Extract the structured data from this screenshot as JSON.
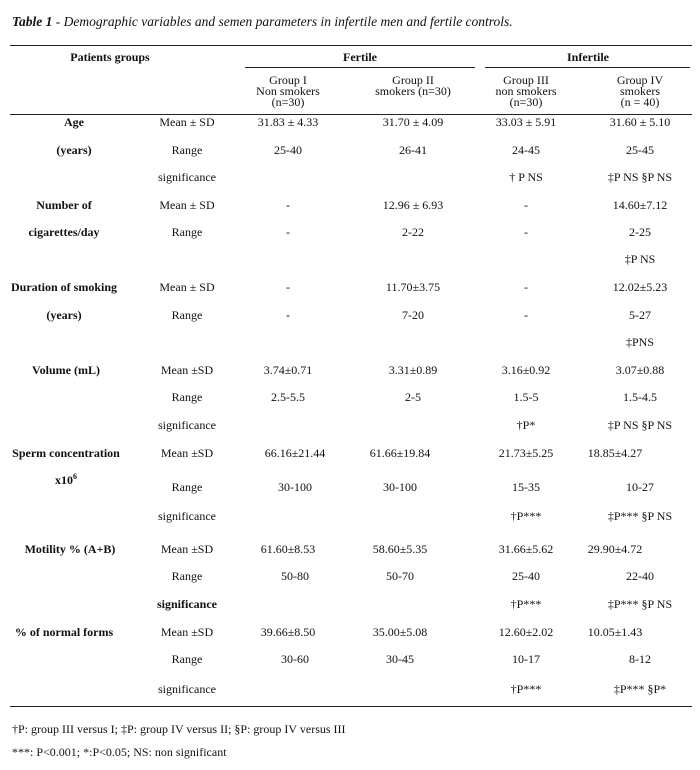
{
  "caption": {
    "label": "Table 1",
    "text": " - Demographic variables and semen parameters in infertile men and fertile controls."
  },
  "header": {
    "patients_groups": "Patients groups",
    "fertile": "Fertile",
    "infertile": "Infertile",
    "group1": [
      "Group I",
      "Non smokers",
      "(n=30)"
    ],
    "group2": [
      "Group II",
      "smokers  (n=30)"
    ],
    "group3": [
      "Group III",
      "non smokers",
      "(n=30)"
    ],
    "group4": [
      "Group IV",
      "smokers",
      "(n = 40)"
    ]
  },
  "rows": {
    "age": {
      "label1": "Age",
      "label2": "(years)",
      "r1": {
        "stat": "Mean ± SD",
        "g1": "31.83 ± 4.33",
        "g2": "31.70 ± 4.09",
        "g3": "33.03 ± 5.91",
        "g4": "31.60 ± 5.10"
      },
      "r2": {
        "stat": "Range",
        "g1": "25-40",
        "g2": "26-41",
        "g3": "24-45",
        "g4": "25-45"
      },
      "r3": {
        "stat": "significance",
        "g3": "† P NS",
        "g4": "‡P NS §P NS"
      }
    },
    "cig": {
      "label1": "Number of",
      "label2": "cigarettes/day",
      "r1": {
        "stat": "Mean ± SD",
        "g1": "-",
        "g2": "12.96 ± 6.93",
        "g3": "-",
        "g4": "14.60±7.12"
      },
      "r2": {
        "stat": "Range",
        "g1": "-",
        "g2": "2-22",
        "g3": "-",
        "g4": "2-25"
      },
      "r3": {
        "g4": "‡P NS"
      }
    },
    "dur": {
      "label1": "Duration of smoking",
      "label2": "(years)",
      "r1": {
        "stat": "Mean ± SD",
        "g1": "-",
        "g2": "11.70±3.75",
        "g3": "-",
        "g4": "12.02±5.23"
      },
      "r2": {
        "stat": "Range",
        "g1": "-",
        "g2": "7-20",
        "g3": "-",
        "g4": "5-27"
      },
      "r3": {
        "g4": "‡PNS"
      }
    },
    "vol": {
      "label1": "Volume (mL)",
      "r1": {
        "stat": "Mean ±SD",
        "g1": "3.74±0.71",
        "g2": "3.31±0.89",
        "g3": "3.16±0.92",
        "g4": "3.07±0.88"
      },
      "r2": {
        "stat": "Range",
        "g1": "2.5-5.5",
        "g2": "2-5",
        "g3": "1.5-5",
        "g4": "1.5-4.5"
      },
      "r3": {
        "stat": "significance",
        "g3": "†P*",
        "g4": "‡P NS §P NS"
      }
    },
    "conc": {
      "label1": "Sperm concentration",
      "label2": "x10",
      "label2_sup": "6",
      "r1": {
        "stat": "Mean ±SD",
        "g1": "66.16±21.44",
        "g2": "61.66±19.84",
        "g3": "21.73±5.25",
        "g4": "18.85±4.27"
      },
      "r2": {
        "stat": "Range",
        "g1": "30-100",
        "g2": "30-100",
        "g3": "15-35",
        "g4": "10-27"
      },
      "r3": {
        "stat": "significance",
        "g3": "†P***",
        "g4": "‡P*** §P NS"
      }
    },
    "mot": {
      "label1": "Motility % (A+B)",
      "r1": {
        "stat": "Mean ±SD",
        "g1": "61.60±8.53",
        "g2": "58.60±5.35",
        "g3": "31.66±5.62",
        "g4": "29.90±4.72"
      },
      "r2": {
        "stat": "Range",
        "g1": "50-80",
        "g2": "50-70",
        "g3": "25-40",
        "g4": "22-40"
      },
      "r3": {
        "stat": "significance",
        "g3": "†P***",
        "g4": "‡P*** §P NS"
      }
    },
    "norm": {
      "label1": "% of normal forms",
      "r1": {
        "stat": "Mean ±SD",
        "g1": "39.66±8.50",
        "g2": "35.00±5.08",
        "g3": "12.60±2.02",
        "g4": "10.05±1.43"
      },
      "r2": {
        "stat": "Range",
        "g1": "30-60",
        "g2": "30-45",
        "g3": "10-17",
        "g4": "8-12"
      },
      "r3": {
        "stat": "significance",
        "g3": "†P***",
        "g4": "‡P*** §P*"
      }
    }
  },
  "footnotes": {
    "line1": "†P: group III versus I; ‡P: group IV versus II; §P: group IV versus III",
    "line2": "***: P<0.001; *:P<0.05; NS: non significant"
  }
}
